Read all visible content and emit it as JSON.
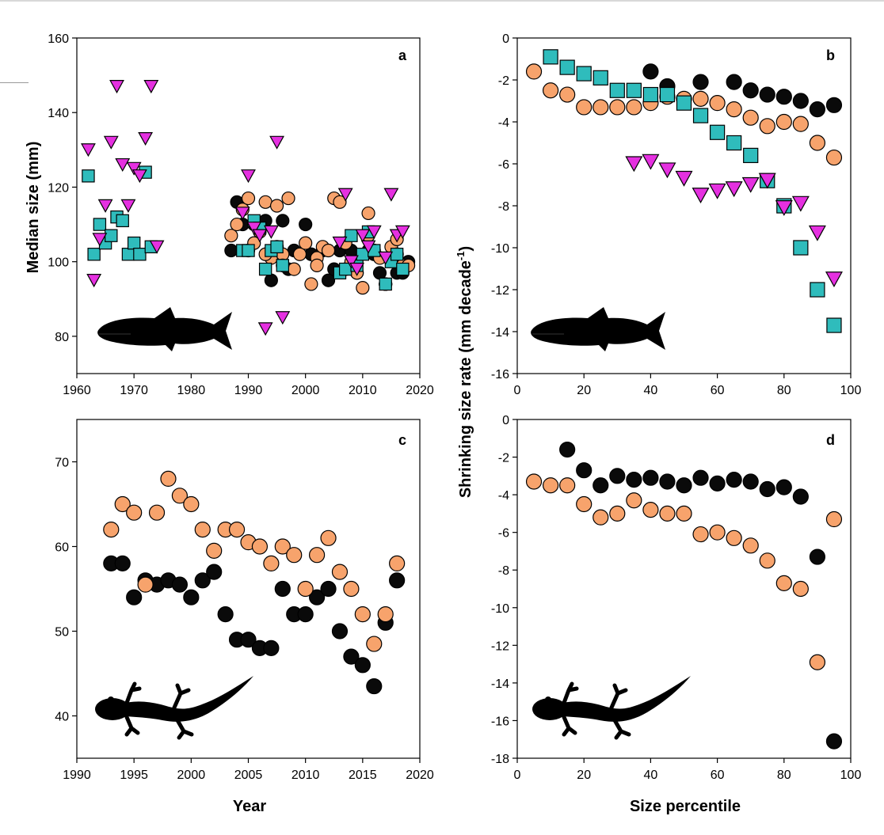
{
  "figure": {
    "ylabel_left": "Median size (mm)",
    "ylabel_right_main": "Shrinking size rate (mm decade",
    "ylabel_right_sup": "-1",
    "ylabel_right_close": ")",
    "colors": {
      "black": "#0a0a0a",
      "orange": "#f7a36c",
      "teal": "#2fbcbc",
      "magenta": "#e530e0",
      "outline": "#000000"
    }
  },
  "chart_data": [
    {
      "id": "a",
      "panel_letter": "a",
      "type": "scatter",
      "xlabel": "",
      "ylabel": "Median size (mm)",
      "xlim": [
        1960,
        2020
      ],
      "ylim": [
        70,
        160
      ],
      "xticks": [
        1960,
        1970,
        1980,
        1990,
        2000,
        2010,
        2020
      ],
      "yticks": [
        80,
        100,
        120,
        140,
        160
      ],
      "silhouette": "fish",
      "series": [
        {
          "color": "black",
          "marker": "circle",
          "x": [
            1987,
            1988,
            1989,
            1990,
            1991,
            1993,
            1994,
            1995,
            1996,
            1998,
            2000,
            2001,
            2003,
            2004,
            2006,
            2008,
            2009,
            2011,
            2013,
            2014,
            2016,
            2017,
            2018,
            1997,
            2005,
            2012
          ],
          "y": [
            103,
            116,
            110,
            103,
            110,
            111,
            95,
            104,
            111,
            103,
            110,
            102,
            103,
            95,
            103,
            103,
            97,
            103,
            97,
            94,
            97,
            97,
            100,
            98,
            98,
            102
          ]
        },
        {
          "color": "orange",
          "marker": "circle",
          "x": [
            1987,
            1988,
            1989,
            1990,
            1991,
            1992,
            1993,
            1994,
            1995,
            1996,
            1997,
            1998,
            1999,
            2000,
            2001,
            2002,
            2003,
            2004,
            2005,
            2006,
            2007,
            2008,
            2009,
            2010,
            2011,
            2012,
            2013,
            2014,
            2015,
            2016,
            2017,
            2018,
            1993,
            1996,
            2002,
            2007,
            2011,
            2016
          ],
          "y": [
            107,
            110,
            114,
            117,
            105,
            108,
            116,
            101,
            115,
            102,
            117,
            98,
            102,
            105,
            94,
            101,
            104,
            103,
            117,
            116,
            98,
            100,
            97,
            93,
            113,
            103,
            101,
            94,
            104,
            106,
            99,
            99,
            102,
            99,
            99,
            105,
            107,
            102
          ]
        },
        {
          "color": "teal",
          "marker": "square",
          "x": [
            1962,
            1963,
            1964,
            1965,
            1966,
            1967,
            1968,
            1969,
            1970,
            1971,
            1972,
            1973,
            1989,
            1990,
            1991,
            1992,
            1993,
            1994,
            1995,
            1996,
            2006,
            2007,
            2008,
            2009,
            2010,
            2011,
            2012,
            2014,
            2015,
            2016,
            2017
          ],
          "y": [
            123,
            102,
            110,
            105,
            107,
            112,
            111,
            102,
            105,
            102,
            124,
            104,
            103,
            103,
            111,
            109,
            98,
            103,
            104,
            99,
            97,
            98,
            107,
            99,
            102,
            108,
            103,
            94,
            100,
            102,
            98
          ]
        },
        {
          "color": "magenta",
          "marker": "triangle-down",
          "x": [
            1962,
            1963,
            1964,
            1965,
            1966,
            1967,
            1968,
            1969,
            1970,
            1971,
            1972,
            1973,
            1974,
            1989,
            1990,
            1991,
            1992,
            1993,
            1994,
            1995,
            1996,
            2006,
            2007,
            2008,
            2009,
            2010,
            2011,
            2012,
            2014,
            2015,
            2016,
            2017
          ],
          "y": [
            130,
            95,
            106,
            115,
            132,
            147,
            126,
            115,
            125,
            123,
            133,
            147,
            104,
            113,
            123,
            109,
            107,
            82,
            108,
            132,
            85,
            105,
            118,
            100,
            98,
            107,
            104,
            108,
            101,
            118,
            107,
            108
          ]
        }
      ]
    },
    {
      "id": "b",
      "panel_letter": "b",
      "type": "scatter",
      "xlabel": "",
      "ylabel": "",
      "xlim": [
        0,
        100
      ],
      "ylim": [
        -16,
        0
      ],
      "xticks": [
        0,
        20,
        40,
        60,
        80,
        100
      ],
      "yticks": [
        0,
        -2,
        -4,
        -6,
        -8,
        -10,
        -12,
        -14,
        -16
      ],
      "silhouette": "fish",
      "series": [
        {
          "color": "black",
          "marker": "circle",
          "x": [
            40,
            45,
            55,
            65,
            70,
            75,
            80,
            85,
            90,
            95
          ],
          "y": [
            -1.6,
            -2.3,
            -2.1,
            -2.1,
            -2.5,
            -2.7,
            -2.8,
            -3.0,
            -3.4,
            -3.2
          ]
        },
        {
          "color": "orange",
          "marker": "circle",
          "x": [
            5,
            10,
            15,
            20,
            25,
            30,
            35,
            40,
            45,
            50,
            55,
            60,
            65,
            70,
            75,
            80,
            85,
            90,
            95
          ],
          "y": [
            -1.6,
            -2.5,
            -2.7,
            -3.3,
            -3.3,
            -3.3,
            -3.3,
            -3.1,
            -2.8,
            -2.9,
            -2.9,
            -3.1,
            -3.4,
            -3.8,
            -4.2,
            -4.0,
            -4.1,
            -5.0,
            -5.7
          ]
        },
        {
          "color": "teal",
          "marker": "square",
          "x": [
            10,
            15,
            20,
            25,
            30,
            35,
            40,
            45,
            50,
            55,
            60,
            65,
            70,
            75,
            80,
            85,
            90,
            95
          ],
          "y": [
            -0.9,
            -1.4,
            -1.7,
            -1.9,
            -2.5,
            -2.5,
            -2.7,
            -2.7,
            -3.1,
            -3.7,
            -4.5,
            -5.0,
            -5.6,
            -6.8,
            -8.0,
            -10.0,
            -12.0,
            -13.7
          ]
        },
        {
          "color": "magenta",
          "marker": "triangle-down",
          "x": [
            35,
            40,
            45,
            50,
            55,
            60,
            65,
            70,
            75,
            80,
            85,
            90,
            95
          ],
          "y": [
            -6.0,
            -5.9,
            -6.3,
            -6.7,
            -7.5,
            -7.3,
            -7.2,
            -7.0,
            -6.8,
            -8.1,
            -7.9,
            -9.3,
            -11.5
          ]
        }
      ]
    },
    {
      "id": "c",
      "panel_letter": "c",
      "type": "scatter",
      "xlabel": "Year",
      "ylabel": "",
      "xlim": [
        1990,
        2020
      ],
      "ylim": [
        35,
        75
      ],
      "xticks": [
        1990,
        1995,
        2000,
        2005,
        2010,
        2015,
        2020
      ],
      "yticks": [
        40,
        50,
        60,
        70
      ],
      "silhouette": "salamander",
      "series": [
        {
          "color": "black",
          "marker": "circle",
          "x": [
            1993,
            1994,
            1995,
            1996,
            1997,
            1998,
            1999,
            2000,
            2001,
            2002,
            2003,
            2004,
            2005,
            2006,
            2007,
            2008,
            2009,
            2010,
            2011,
            2012,
            2013,
            2014,
            2015,
            2016,
            2017,
            2018
          ],
          "y": [
            58,
            58,
            54,
            56,
            55.5,
            56,
            55.5,
            54,
            56,
            57,
            52,
            49,
            49,
            48,
            48,
            55,
            52,
            52,
            54,
            55,
            50,
            47,
            46,
            43.5,
            51,
            56
          ]
        },
        {
          "color": "orange",
          "marker": "circle",
          "x": [
            1993,
            1994,
            1995,
            1997,
            1998,
            1999,
            2000,
            2001,
            2002,
            2003,
            2004,
            2005,
            2006,
            2007,
            2008,
            2009,
            2010,
            2011,
            2012,
            2013,
            2014,
            2015,
            2016,
            2017,
            2018,
            1996
          ],
          "y": [
            62,
            65,
            64,
            64,
            68,
            66,
            65,
            62,
            59.5,
            62,
            62,
            60.5,
            60,
            58,
            60,
            59,
            55,
            59,
            61,
            57,
            55,
            52,
            48.5,
            52,
            58,
            55.5
          ]
        }
      ]
    },
    {
      "id": "d",
      "panel_letter": "d",
      "type": "scatter",
      "xlabel": "Size percentile",
      "ylabel": "",
      "xlim": [
        0,
        100
      ],
      "ylim": [
        -18,
        0
      ],
      "xticks": [
        0,
        20,
        40,
        60,
        80,
        100
      ],
      "yticks": [
        0,
        -2,
        -4,
        -6,
        -8,
        -10,
        -12,
        -14,
        -16,
        -18
      ],
      "silhouette": "salamander",
      "series": [
        {
          "color": "black",
          "marker": "circle",
          "x": [
            15,
            20,
            25,
            30,
            35,
            40,
            45,
            50,
            55,
            60,
            65,
            70,
            75,
            80,
            85,
            90,
            95
          ],
          "y": [
            -1.6,
            -2.7,
            -3.5,
            -3.0,
            -3.2,
            -3.1,
            -3.3,
            -3.5,
            -3.1,
            -3.4,
            -3.2,
            -3.3,
            -3.7,
            -3.6,
            -4.1,
            -7.3,
            -17.1
          ]
        },
        {
          "color": "orange",
          "marker": "circle",
          "x": [
            5,
            10,
            15,
            20,
            25,
            30,
            35,
            40,
            45,
            50,
            55,
            60,
            65,
            70,
            75,
            80,
            85,
            90,
            95
          ],
          "y": [
            -3.3,
            -3.5,
            -3.5,
            -4.5,
            -5.2,
            -5.0,
            -4.3,
            -4.8,
            -5.0,
            -5.0,
            -6.1,
            -6.0,
            -6.3,
            -6.7,
            -7.5,
            -8.7,
            -9.0,
            -12.9,
            -5.3
          ]
        }
      ]
    }
  ]
}
